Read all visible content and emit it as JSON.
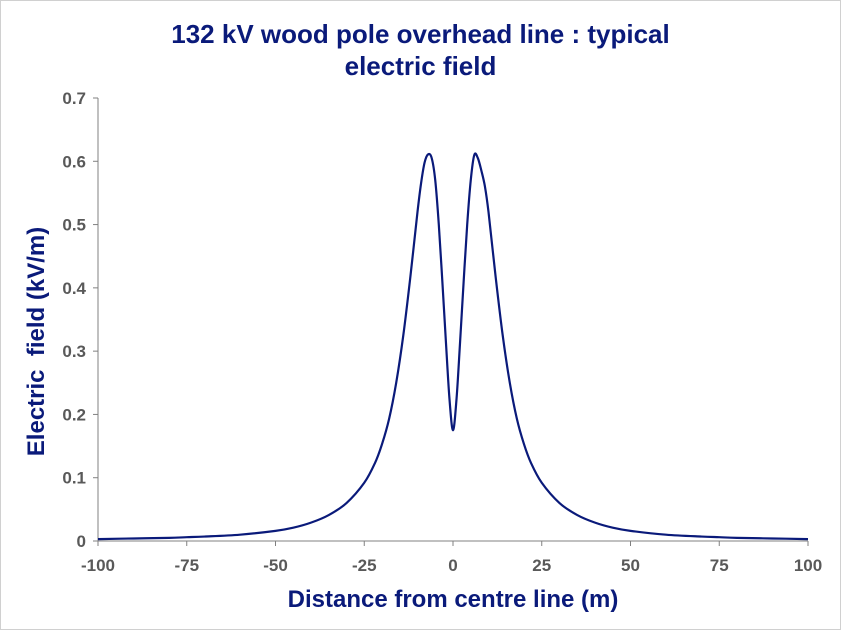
{
  "chart_data": {
    "type": "line",
    "title_lines": [
      "132 kV wood pole overhead line : typical",
      "electric field"
    ],
    "xlabel": "Distance from centre line (m)",
    "ylabel": "Electric  field (kV/m)",
    "xlim": [
      -100,
      100
    ],
    "ylim": [
      0,
      0.7
    ],
    "x_ticks": [
      "-100",
      "-75",
      "-50",
      "-25",
      "0",
      "25",
      "50",
      "75",
      "100"
    ],
    "y_ticks": [
      "0",
      "0.1",
      "0.2",
      "0.3",
      "0.4",
      "0.5",
      "0.6",
      "0.7"
    ],
    "grid": false,
    "legend": "none",
    "line_color": "#0a1a7a",
    "series": [
      {
        "x": [
          -100,
          -90,
          -80,
          -75,
          -70,
          -60,
          -50,
          -45,
          -40,
          -35,
          -30,
          -25,
          -22,
          -20,
          -18,
          -16,
          -14,
          -12,
          -10,
          -9,
          -8,
          -7,
          -6,
          -5,
          -4,
          -3,
          -2,
          -1,
          0,
          1,
          2,
          3,
          4,
          5,
          6,
          7,
          8,
          9,
          10,
          12,
          14,
          16,
          18,
          20,
          22,
          25,
          30,
          35,
          40,
          45,
          50,
          60,
          70,
          75,
          80,
          90,
          100
        ],
        "y": [
          0.003,
          0.004,
          0.005,
          0.006,
          0.007,
          0.01,
          0.016,
          0.021,
          0.029,
          0.041,
          0.06,
          0.092,
          0.123,
          0.153,
          0.193,
          0.25,
          0.325,
          0.418,
          0.52,
          0.565,
          0.598,
          0.611,
          0.605,
          0.57,
          0.5,
          0.41,
          0.315,
          0.225,
          0.175,
          0.225,
          0.315,
          0.41,
          0.5,
          0.57,
          0.61,
          0.605,
          0.585,
          0.56,
          0.52,
          0.418,
          0.325,
          0.25,
          0.193,
          0.153,
          0.123,
          0.092,
          0.06,
          0.041,
          0.029,
          0.021,
          0.016,
          0.01,
          0.007,
          0.006,
          0.005,
          0.004,
          0.003
        ]
      }
    ]
  }
}
